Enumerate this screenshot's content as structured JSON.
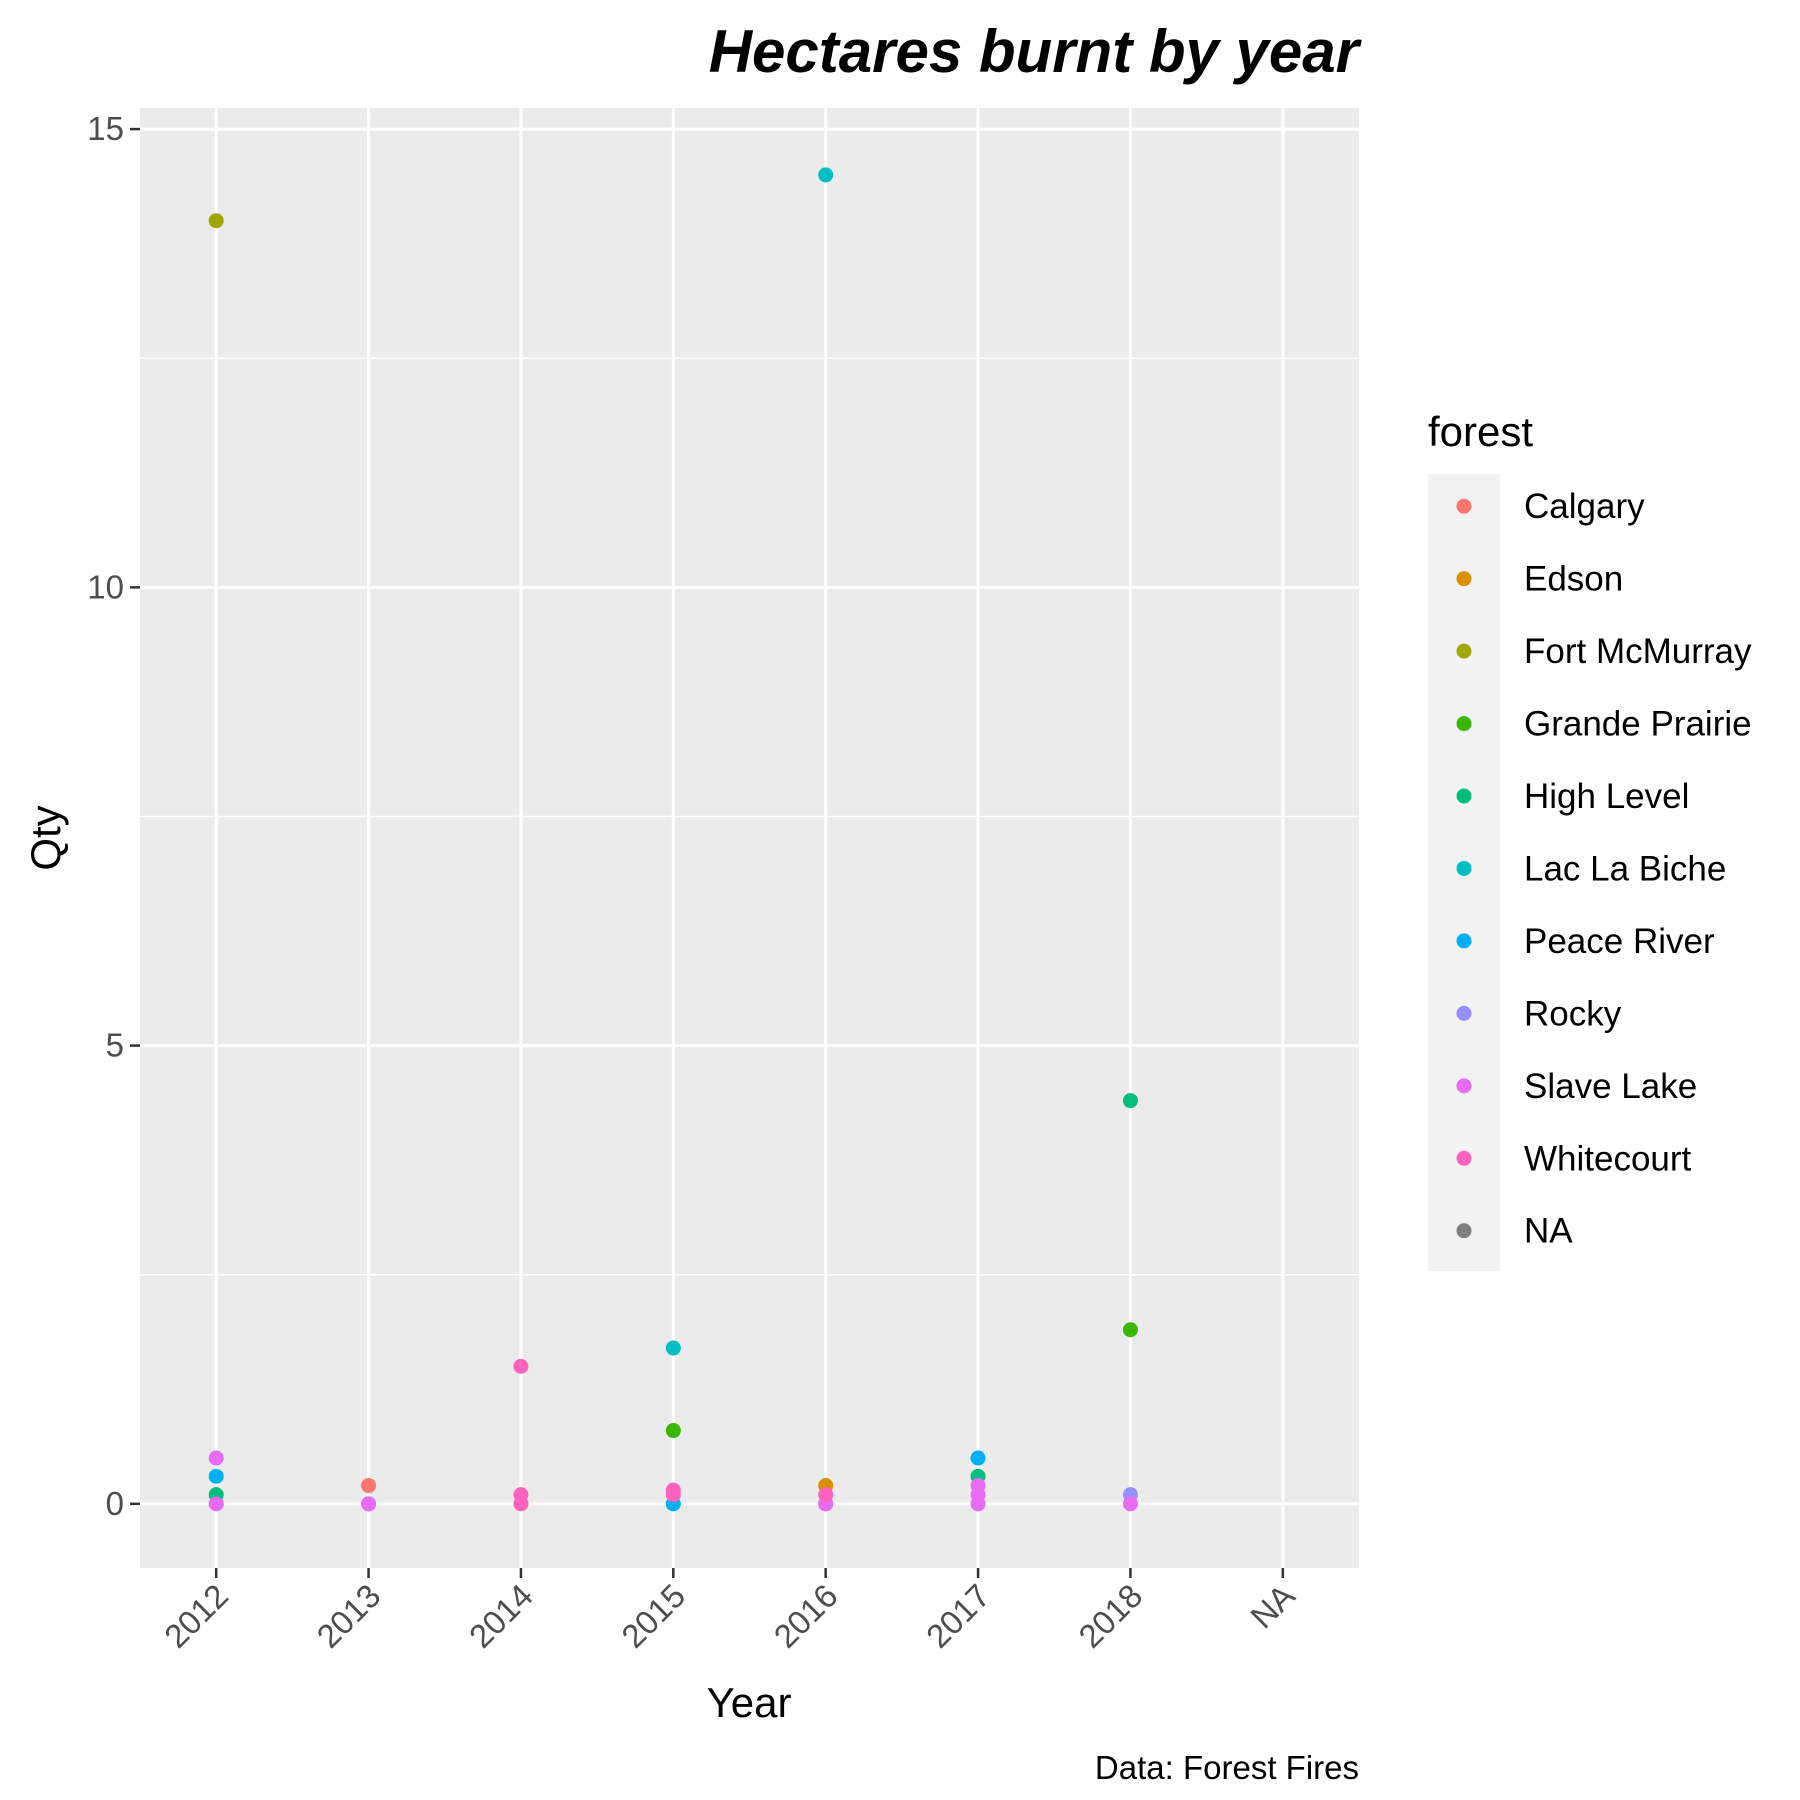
{
  "chart_data": {
    "type": "scatter",
    "title": "Hectares burnt by year",
    "xlabel": "Year",
    "ylabel": "Qty",
    "caption": "Data: Forest Fires",
    "x_categories": [
      "2012",
      "2013",
      "2014",
      "2015",
      "2016",
      "2017",
      "2018",
      "NA"
    ],
    "y_ticks": [
      0,
      5,
      10,
      15
    ],
    "ylim": [
      -0.7,
      15.23
    ],
    "grid": true,
    "legend": {
      "title": "forest",
      "placement": "right"
    },
    "series": [
      {
        "name": "Calgary",
        "color": "#F8766D",
        "points": [
          {
            "x": "2013",
            "y": 0.2
          },
          {
            "x": "2013",
            "y": 0.0
          }
        ]
      },
      {
        "name": "Edson",
        "color": "#D89000",
        "points": [
          {
            "x": "2016",
            "y": 0.2
          },
          {
            "x": "2016",
            "y": 0.0
          }
        ]
      },
      {
        "name": "Fort McMurray",
        "color": "#A3A500",
        "points": [
          {
            "x": "2012",
            "y": 14.0
          }
        ]
      },
      {
        "name": "Grande Prairie",
        "color": "#39B600",
        "points": [
          {
            "x": "2015",
            "y": 0.8
          },
          {
            "x": "2018",
            "y": 1.9
          }
        ]
      },
      {
        "name": "High Level",
        "color": "#00BF7D",
        "points": [
          {
            "x": "2012",
            "y": 0.1
          },
          {
            "x": "2017",
            "y": 0.3
          },
          {
            "x": "2018",
            "y": 4.4
          }
        ]
      },
      {
        "name": "Lac La Biche",
        "color": "#00BFC4",
        "points": [
          {
            "x": "2015",
            "y": 1.7
          },
          {
            "x": "2016",
            "y": 14.5
          }
        ]
      },
      {
        "name": "Peace River",
        "color": "#00B0F6",
        "points": [
          {
            "x": "2012",
            "y": 0.3
          },
          {
            "x": "2015",
            "y": 0.0
          },
          {
            "x": "2017",
            "y": 0.5
          }
        ]
      },
      {
        "name": "Rocky",
        "color": "#9590FF",
        "points": [
          {
            "x": "2018",
            "y": 0.1
          }
        ]
      },
      {
        "name": "Slave Lake",
        "color": "#E76BF3",
        "points": [
          {
            "x": "2012",
            "y": 0.5
          },
          {
            "x": "2012",
            "y": 0.0
          },
          {
            "x": "2013",
            "y": 0.0
          },
          {
            "x": "2016",
            "y": 0.0
          },
          {
            "x": "2017",
            "y": 0.2
          },
          {
            "x": "2017",
            "y": 0.1
          },
          {
            "x": "2017",
            "y": 0.0
          },
          {
            "x": "2018",
            "y": 0.0
          }
        ]
      },
      {
        "name": "Whitecourt",
        "color": "#FF62BC",
        "points": [
          {
            "x": "2014",
            "y": 1.5
          },
          {
            "x": "2014",
            "y": 0.1
          },
          {
            "x": "2014",
            "y": 0.0
          },
          {
            "x": "2015",
            "y": 0.15
          },
          {
            "x": "2015",
            "y": 0.1
          },
          {
            "x": "2016",
            "y": 0.1
          }
        ]
      },
      {
        "name": "NA",
        "color": "#7F7F7F",
        "points": []
      }
    ]
  }
}
